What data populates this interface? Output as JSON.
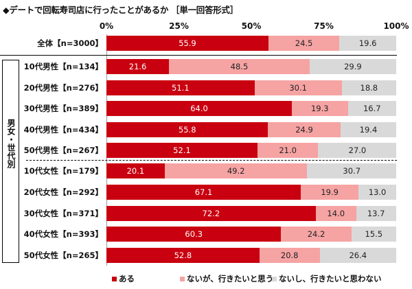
{
  "title": "◆デートで回転寿司店に行ったことがあるか ［単一回答形式］",
  "group_label": "男女・世代別",
  "chart_data": {
    "type": "bar",
    "orientation": "horizontal",
    "stacked": true,
    "xlim": [
      0,
      100
    ],
    "x_ticks": [
      "0%",
      "25%",
      "50%",
      "75%",
      "100%"
    ],
    "categories": [
      "全体【n=3000】",
      "10代男性【n=134】",
      "20代男性【n=276】",
      "30代男性【n=389】",
      "40代男性【n=434】",
      "50代男性【n=267】",
      "10代女性【n=179】",
      "20代女性【n=292】",
      "30代女性【n=371】",
      "40代女性【n=393】",
      "50代女性【n=265】"
    ],
    "series": [
      {
        "name": "ある",
        "color": "#c9000f",
        "values": [
          55.9,
          21.6,
          51.1,
          64.0,
          55.8,
          52.1,
          20.1,
          67.1,
          72.2,
          60.3,
          52.8
        ]
      },
      {
        "name": "ないが、行きたいと思う",
        "color": "#f6a3a3",
        "values": [
          24.5,
          48.5,
          30.1,
          19.3,
          24.9,
          21.0,
          49.2,
          19.9,
          14.0,
          24.2,
          20.8
        ]
      },
      {
        "name": "ないし、行きたいと思わない",
        "color": "#d9d9d9",
        "values": [
          19.6,
          29.9,
          18.8,
          16.7,
          19.4,
          27.0,
          30.7,
          13.0,
          13.7,
          15.5,
          26.4
        ]
      }
    ],
    "legend": "bottom"
  }
}
